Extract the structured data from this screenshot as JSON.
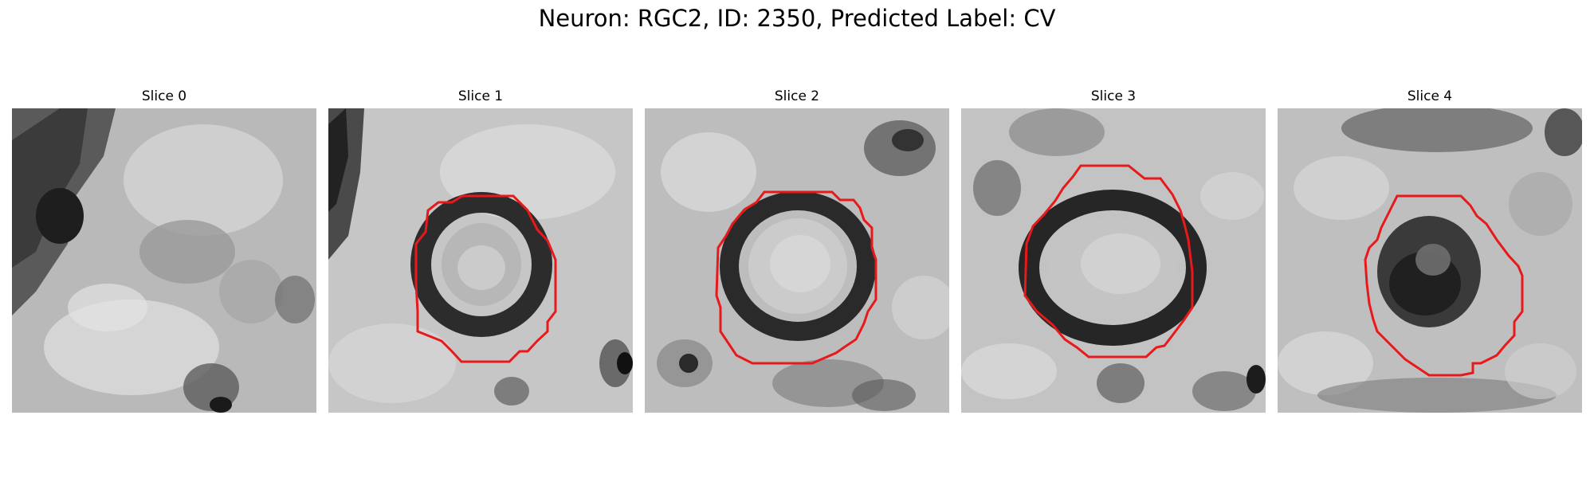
{
  "figure": {
    "title": "Neuron: RGC2, ID: 2350, Predicted Label: CV"
  },
  "panels": [
    {
      "title": "Slice 0",
      "has_contour": false
    },
    {
      "title": "Slice 1",
      "has_contour": true
    },
    {
      "title": "Slice 2",
      "has_contour": true
    },
    {
      "title": "Slice 3",
      "has_contour": true
    },
    {
      "title": "Slice 4",
      "has_contour": true
    }
  ],
  "colors": {
    "contour": "#e8191b",
    "background": "#ffffff"
  }
}
